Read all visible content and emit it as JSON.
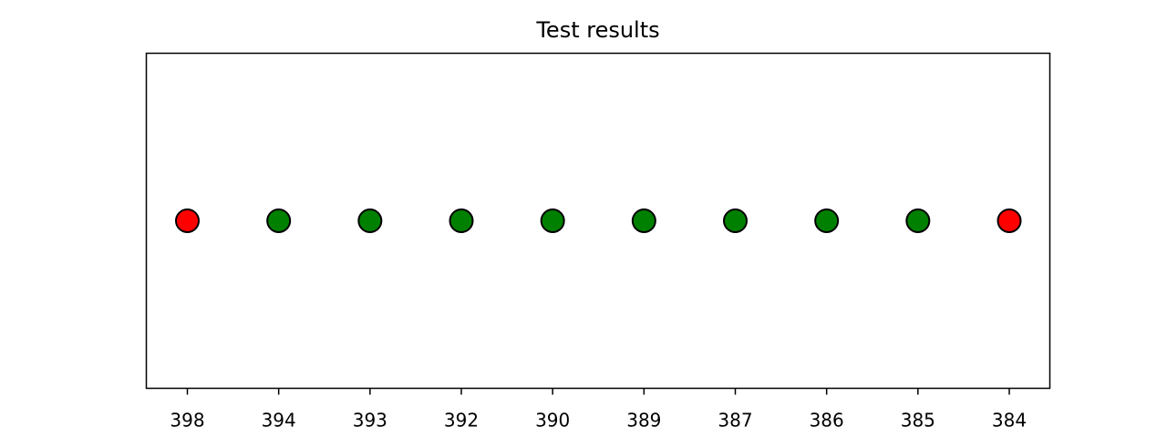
{
  "chart_data": {
    "type": "scatter",
    "title": "Test results",
    "xlabel": "",
    "ylabel": "",
    "categories": [
      "398",
      "394",
      "393",
      "392",
      "390",
      "389",
      "387",
      "386",
      "385",
      "384"
    ],
    "status": [
      "fail",
      "pass",
      "pass",
      "pass",
      "pass",
      "pass",
      "pass",
      "pass",
      "pass",
      "fail"
    ],
    "y": [
      0,
      0,
      0,
      0,
      0,
      0,
      0,
      0,
      0,
      0
    ],
    "status_colors": {
      "pass": "#008000",
      "fail": "#ff0000"
    },
    "marker_edge_color": "#000000",
    "grid": false,
    "legend": "none",
    "y_ticks_visible": false
  }
}
